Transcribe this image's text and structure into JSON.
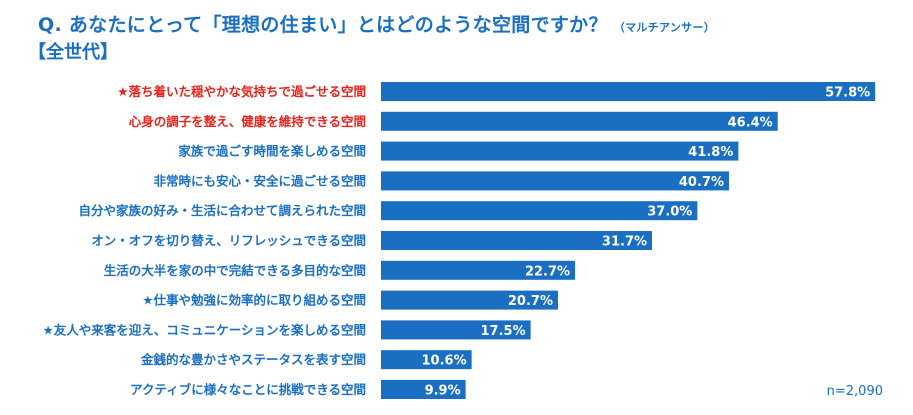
{
  "header": {
    "question": "Q. あなたにとって「理想の住まい」とはどのような空間ですか？",
    "question_note": "（マルチアンサー）",
    "segment": "【全世代】"
  },
  "sample_size": "n=2,090",
  "colors": {
    "bar": "#1a6fc2",
    "label_default": "#1a6fc2",
    "label_highlight": "#e8231d",
    "value_text": "#ffffff"
  },
  "chart_data": {
    "type": "bar",
    "orientation": "horizontal",
    "unit": "%",
    "xlim": [
      0,
      60
    ],
    "grid": false,
    "categories": [
      "★落ち着いた穏やかな気持ちで過ごせる空間",
      "心身の調子を整え、健康を維持できる空間",
      "家族で過ごす時間を楽しめる空間",
      "非常時にも安心・安全に過ごせる空間",
      "自分や家族の好み・生活に合わせて調えられた空間",
      "オン・オフを切り替え、リフレッシュできる空間",
      "生活の大半を家の中で完結できる多目的な空間",
      "★仕事や勉強に効率的に取り組める空間",
      "★友人や来客を迎え、コミュニケーションを楽しめる空間",
      "金銭的な豊かさやステータスを表す空間",
      "アクティブに様々なことに挑戦できる空間"
    ],
    "values": [
      57.8,
      46.4,
      41.8,
      40.7,
      37.0,
      31.7,
      22.7,
      20.7,
      17.5,
      10.6,
      9.9
    ],
    "value_labels": [
      "57.8%",
      "46.4%",
      "41.8%",
      "40.7%",
      "37.0%",
      "31.7%",
      "22.7%",
      "20.7%",
      "17.5%",
      "10.6%",
      "9.9%"
    ],
    "highlighted_categories": [
      0,
      1
    ]
  }
}
